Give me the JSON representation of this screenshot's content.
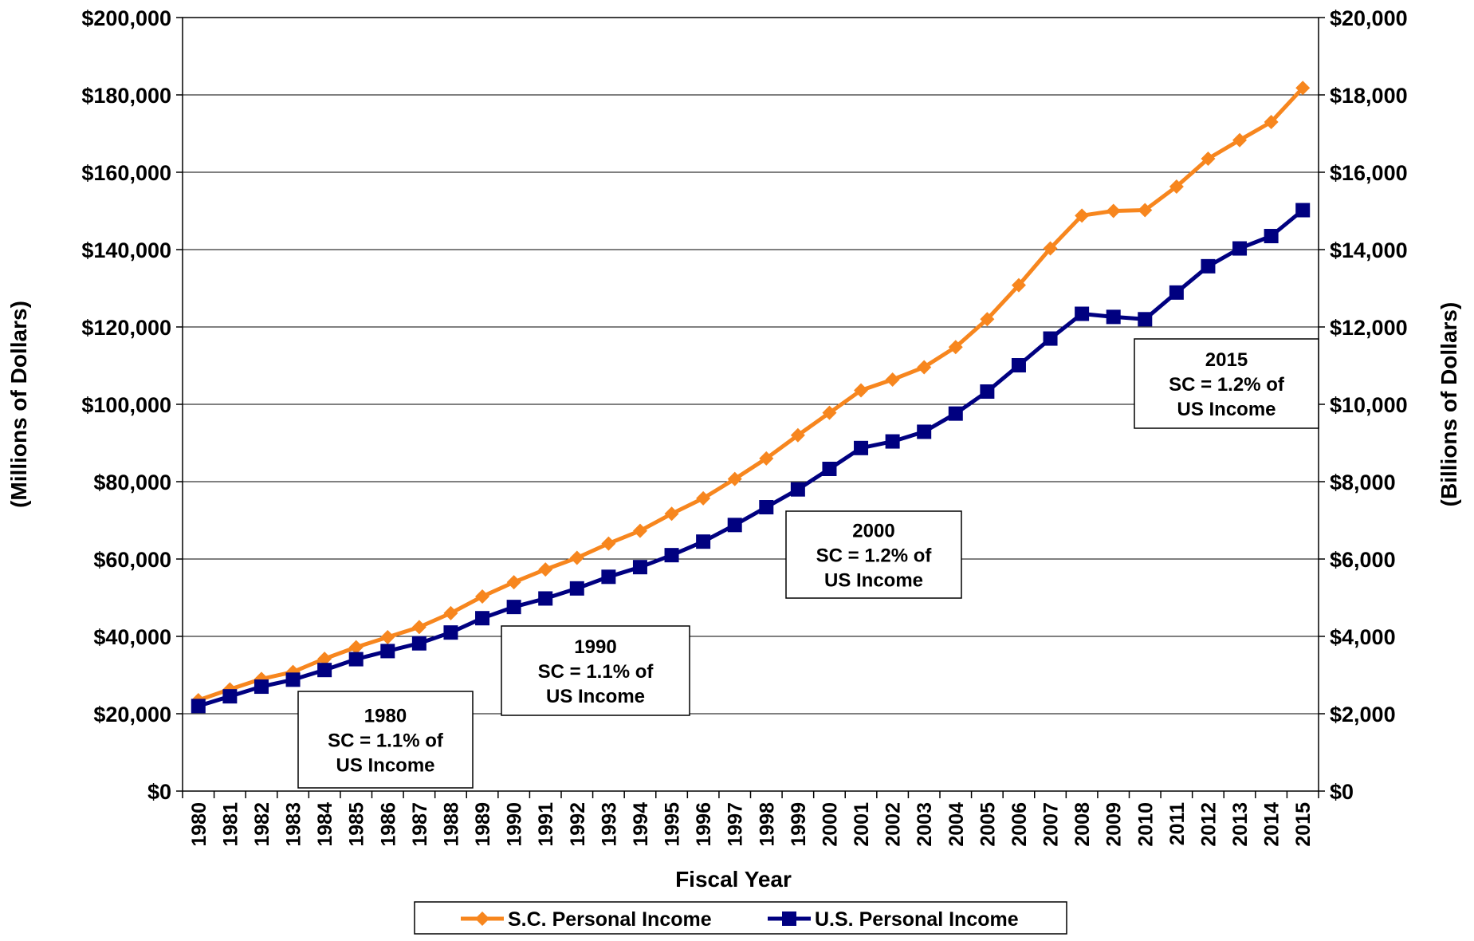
{
  "chart_data": {
    "type": "line",
    "xlabel": "Fiscal Year",
    "ylabel_left": "(Millions of Dollars)",
    "ylabel_right": "(Billions of Dollars)",
    "ylim_left": [
      0,
      200000
    ],
    "ylim_right": [
      0,
      20000
    ],
    "y_ticks_left": [
      "$0",
      "$20,000",
      "$40,000",
      "$60,000",
      "$80,000",
      "$100,000",
      "$120,000",
      "$140,000",
      "$160,000",
      "$180,000",
      "$200,000"
    ],
    "y_ticks_right": [
      "$0",
      "$2,000",
      "$4,000",
      "$6,000",
      "$8,000",
      "$10,000",
      "$12,000",
      "$14,000",
      "$16,000",
      "$18,000",
      "$20,000"
    ],
    "grid": true,
    "legend_position": "bottom",
    "categories": [
      "1980",
      "1981",
      "1982",
      "1983",
      "1984",
      "1985",
      "1986",
      "1987",
      "1988",
      "1989",
      "1990",
      "1991",
      "1992",
      "1993",
      "1994",
      "1995",
      "1996",
      "1997",
      "1998",
      "1999",
      "2000",
      "2001",
      "2002",
      "2003",
      "2004",
      "2005",
      "2006",
      "2007",
      "2008",
      "2009",
      "2010",
      "2011",
      "2012",
      "2013",
      "2014",
      "2015"
    ],
    "series": [
      {
        "name": "S.C. Personal Income",
        "axis": "left",
        "color": "#F7861E",
        "marker": "diamond",
        "values": [
          23500,
          26300,
          29000,
          30800,
          34200,
          37200,
          39800,
          42400,
          46000,
          50300,
          54000,
          57300,
          60300,
          64000,
          67300,
          71700,
          75700,
          80700,
          86000,
          92000,
          97800,
          103600,
          106400,
          109600,
          114800,
          122000,
          130800,
          140300,
          148800,
          150000,
          150200,
          156300,
          163500,
          168300,
          173000,
          181800
        ]
      },
      {
        "name": "U.S. Personal Income",
        "axis": "right",
        "color": "#000080",
        "marker": "square",
        "values": [
          2200,
          2450,
          2700,
          2880,
          3130,
          3410,
          3620,
          3820,
          4100,
          4470,
          4760,
          4980,
          5240,
          5540,
          5790,
          6100,
          6450,
          6880,
          7340,
          7800,
          8330,
          8870,
          9040,
          9290,
          9760,
          10330,
          11010,
          11700,
          12340,
          12260,
          12200,
          12890,
          13570,
          14030,
          14350,
          15020
        ]
      }
    ],
    "annotations": [
      {
        "year": "1980",
        "line2": "SC = 1.1% of",
        "line3": "US Income"
      },
      {
        "year": "1990",
        "line2": "SC = 1.1% of",
        "line3": "US Income"
      },
      {
        "year": "2000",
        "line2": "SC = 1.2% of",
        "line3": "US Income"
      },
      {
        "year": "2015",
        "line2": "SC = 1.2% of",
        "line3": "US Income"
      }
    ]
  }
}
